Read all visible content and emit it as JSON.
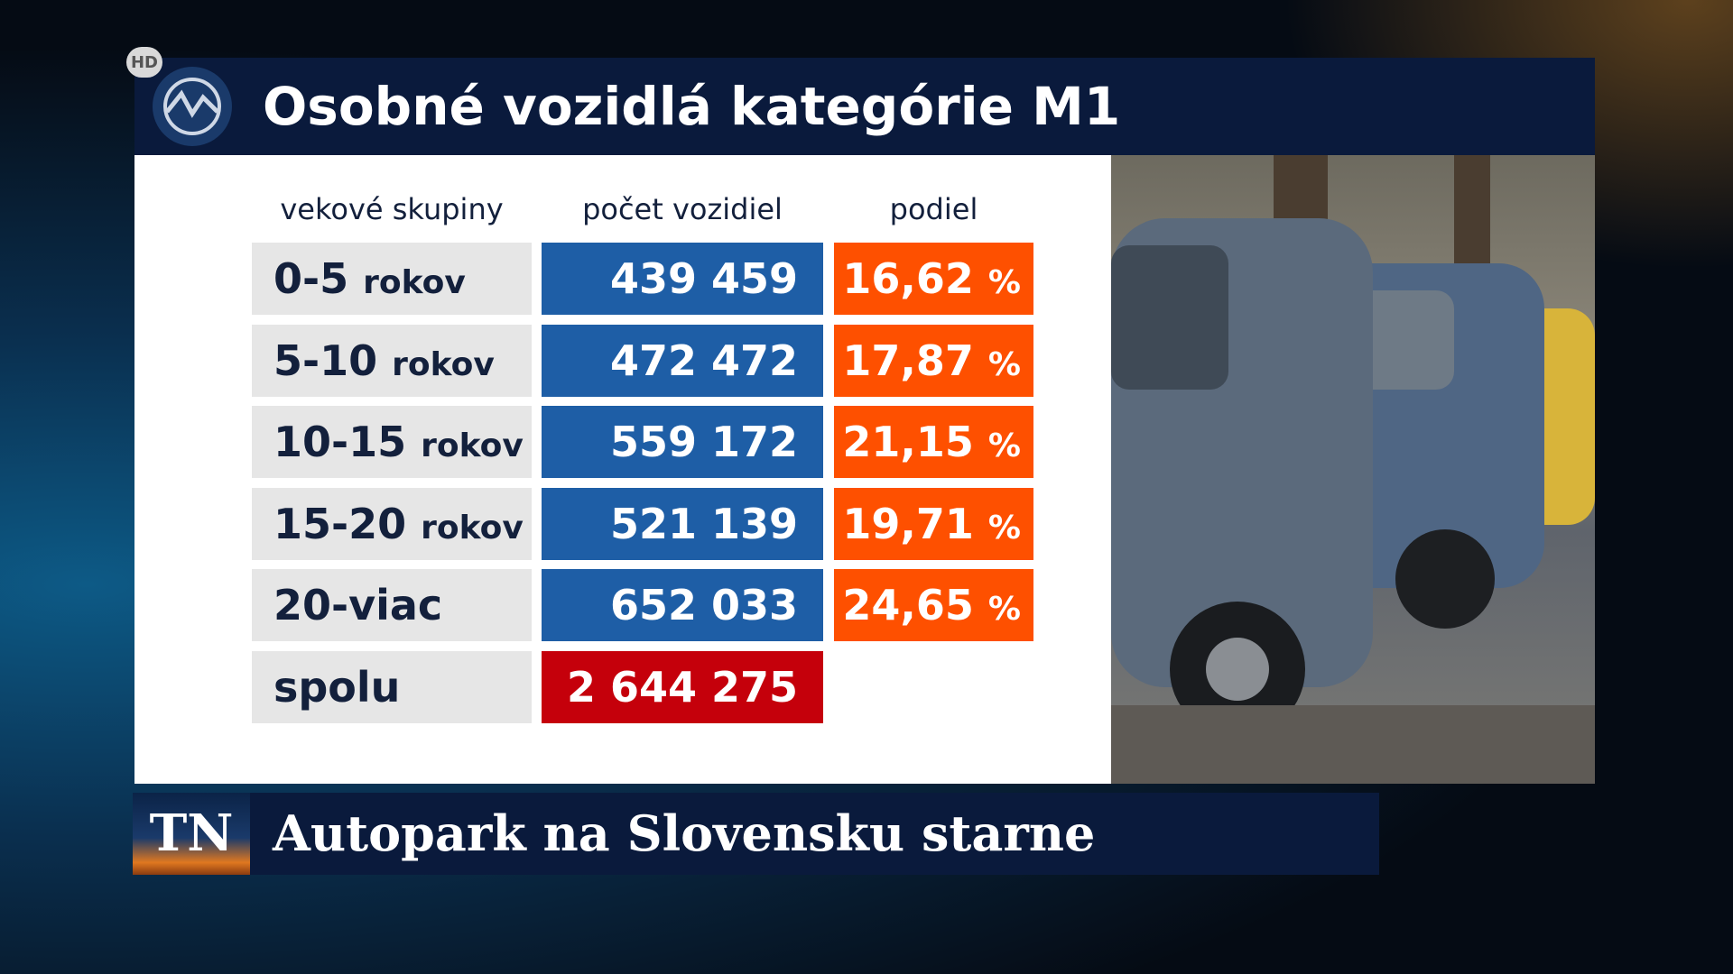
{
  "header": {
    "badge": "HD",
    "title": "Osobné vozidlá kategórie M1"
  },
  "table": {
    "columns": [
      "vekové skupiny",
      "počet vozidiel",
      "podiel"
    ],
    "rows": [
      {
        "group": "0-5",
        "unit": "rokov",
        "count": "439 459",
        "share": "16,62",
        "share_unit": "%"
      },
      {
        "group": "5-10",
        "unit": "rokov",
        "count": "472 472",
        "share": "17,87",
        "share_unit": "%"
      },
      {
        "group": "10-15",
        "unit": "rokov",
        "count": "559 172",
        "share": "21,15",
        "share_unit": "%"
      },
      {
        "group": "15-20",
        "unit": "rokov",
        "count": "521 139",
        "share": "19,71",
        "share_unit": "%"
      },
      {
        "group": "20-viac",
        "count": "652 033",
        "share": "24,65",
        "share_unit": "%"
      }
    ],
    "total": {
      "label": "spolu",
      "count": "2 644 275"
    }
  },
  "footer": {
    "logo": "TN",
    "headline": "Autopark na Slovensku starne"
  }
}
